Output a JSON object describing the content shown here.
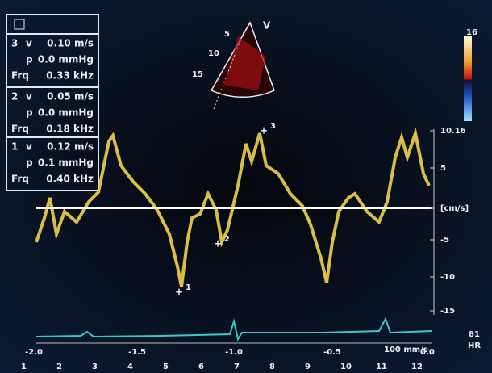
{
  "panel": {
    "boxes": [
      {
        "id": "3",
        "v_label": "v",
        "v": "0.10 m/s",
        "p_label": "p",
        "p": "0.0 mmHg",
        "frq_label": "Frq",
        "frq": "0.33 kHz"
      },
      {
        "id": "2",
        "v_label": "v",
        "v": "0.05 m/s",
        "p_label": "p",
        "p": "0.0 mmHg",
        "frq_label": "Frq",
        "frq": "0.18 kHz"
      },
      {
        "id": "1",
        "v_label": "v",
        "v": "0.12 m/s",
        "p_label": "p",
        "p": "0.1 mmHg",
        "frq_label": "Frq",
        "frq": "0.40 kHz"
      }
    ]
  },
  "sector": {
    "depths": [
      "5",
      "10",
      "15"
    ],
    "mode": "V",
    "scale_top": "16"
  },
  "doppler": {
    "y_ticks": [
      "10.16",
      "5",
      "[cm/s]",
      "-5",
      "-10",
      "-15"
    ],
    "x_ticks": [
      "-2.0",
      "-1.5",
      "-1.0",
      "-0.5",
      "0.0"
    ],
    "markers": [
      "1",
      "2",
      "3"
    ],
    "sweep": "100 mm/s",
    "hr_value": "81",
    "hr_label": "HR"
  },
  "footer": {
    "beats": [
      "1",
      "2",
      "3",
      "4",
      "5",
      "6",
      "7",
      "8",
      "9",
      "10",
      "11",
      "12"
    ]
  }
}
